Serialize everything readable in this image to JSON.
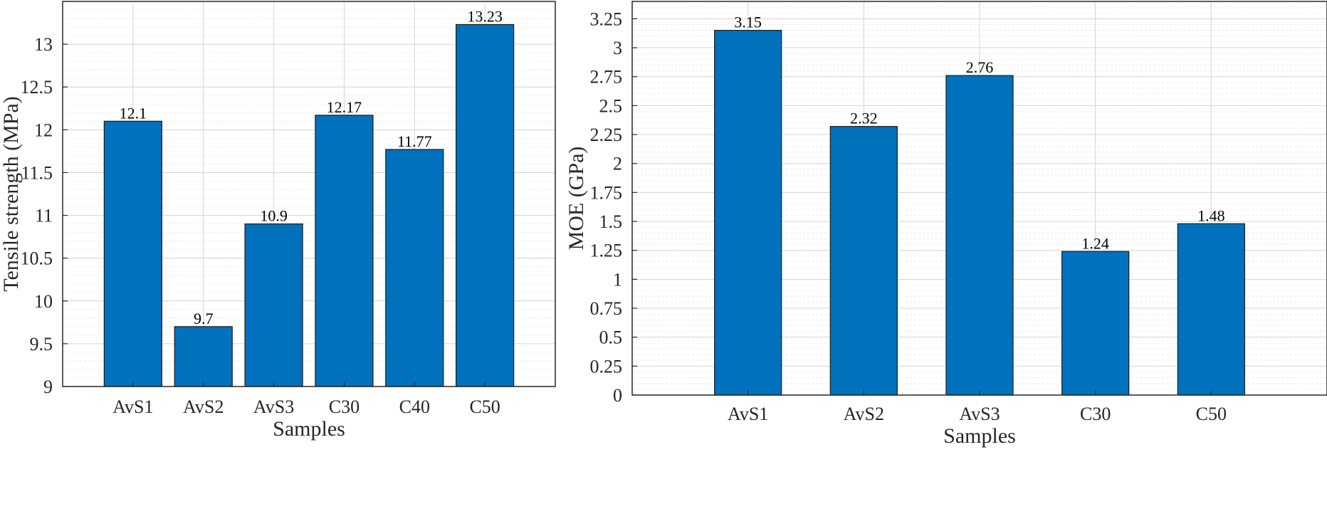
{
  "chart_data": [
    {
      "type": "bar",
      "title": "",
      "xlabel": "Samples",
      "ylabel": "Tensile strength (MPa)",
      "categories": [
        "AvS1",
        "AvS2",
        "AvS3",
        "C30",
        "C40",
        "C50"
      ],
      "values": [
        12.1,
        9.7,
        10.9,
        12.17,
        11.77,
        13.23
      ],
      "data_labels": [
        "12.1",
        "9.7",
        "10.9",
        "12.17",
        "11.77",
        "13.23"
      ],
      "ylim": [
        9,
        13.5
      ],
      "yticks": [
        9,
        9.5,
        10,
        10.5,
        11,
        11.5,
        12,
        12.5,
        13
      ],
      "ytick_labels": [
        "9",
        "9.5",
        "10",
        "10.5",
        "11",
        "11.5",
        "12",
        "12.5",
        "13"
      ],
      "minor_grid_step": 0.1,
      "grid": true,
      "bar_color": "#0072BD"
    },
    {
      "type": "bar",
      "title": "",
      "xlabel": "Samples",
      "ylabel": "MOE (GPa)",
      "categories": [
        "AvS1",
        "AvS2",
        "AvS3",
        "C30",
        "C50"
      ],
      "values": [
        3.15,
        2.32,
        2.76,
        1.24,
        1.48
      ],
      "data_labels": [
        "3.15",
        "2.32",
        "2.76",
        "1.24",
        "1.48"
      ],
      "ylim": [
        0,
        3.4
      ],
      "yticks": [
        0,
        0.25,
        0.5,
        0.75,
        1,
        1.25,
        1.5,
        1.75,
        2,
        2.25,
        2.5,
        2.75,
        3,
        3.25
      ],
      "ytick_labels": [
        "0",
        "0.25",
        "0.5",
        "0.75",
        "1",
        "1.25",
        "1.5",
        "1.75",
        "2",
        "2.25",
        "2.5",
        "2.75",
        "3",
        "3.25"
      ],
      "minor_grid_step": 0.05,
      "grid": true,
      "bar_color": "#0072BD"
    }
  ]
}
